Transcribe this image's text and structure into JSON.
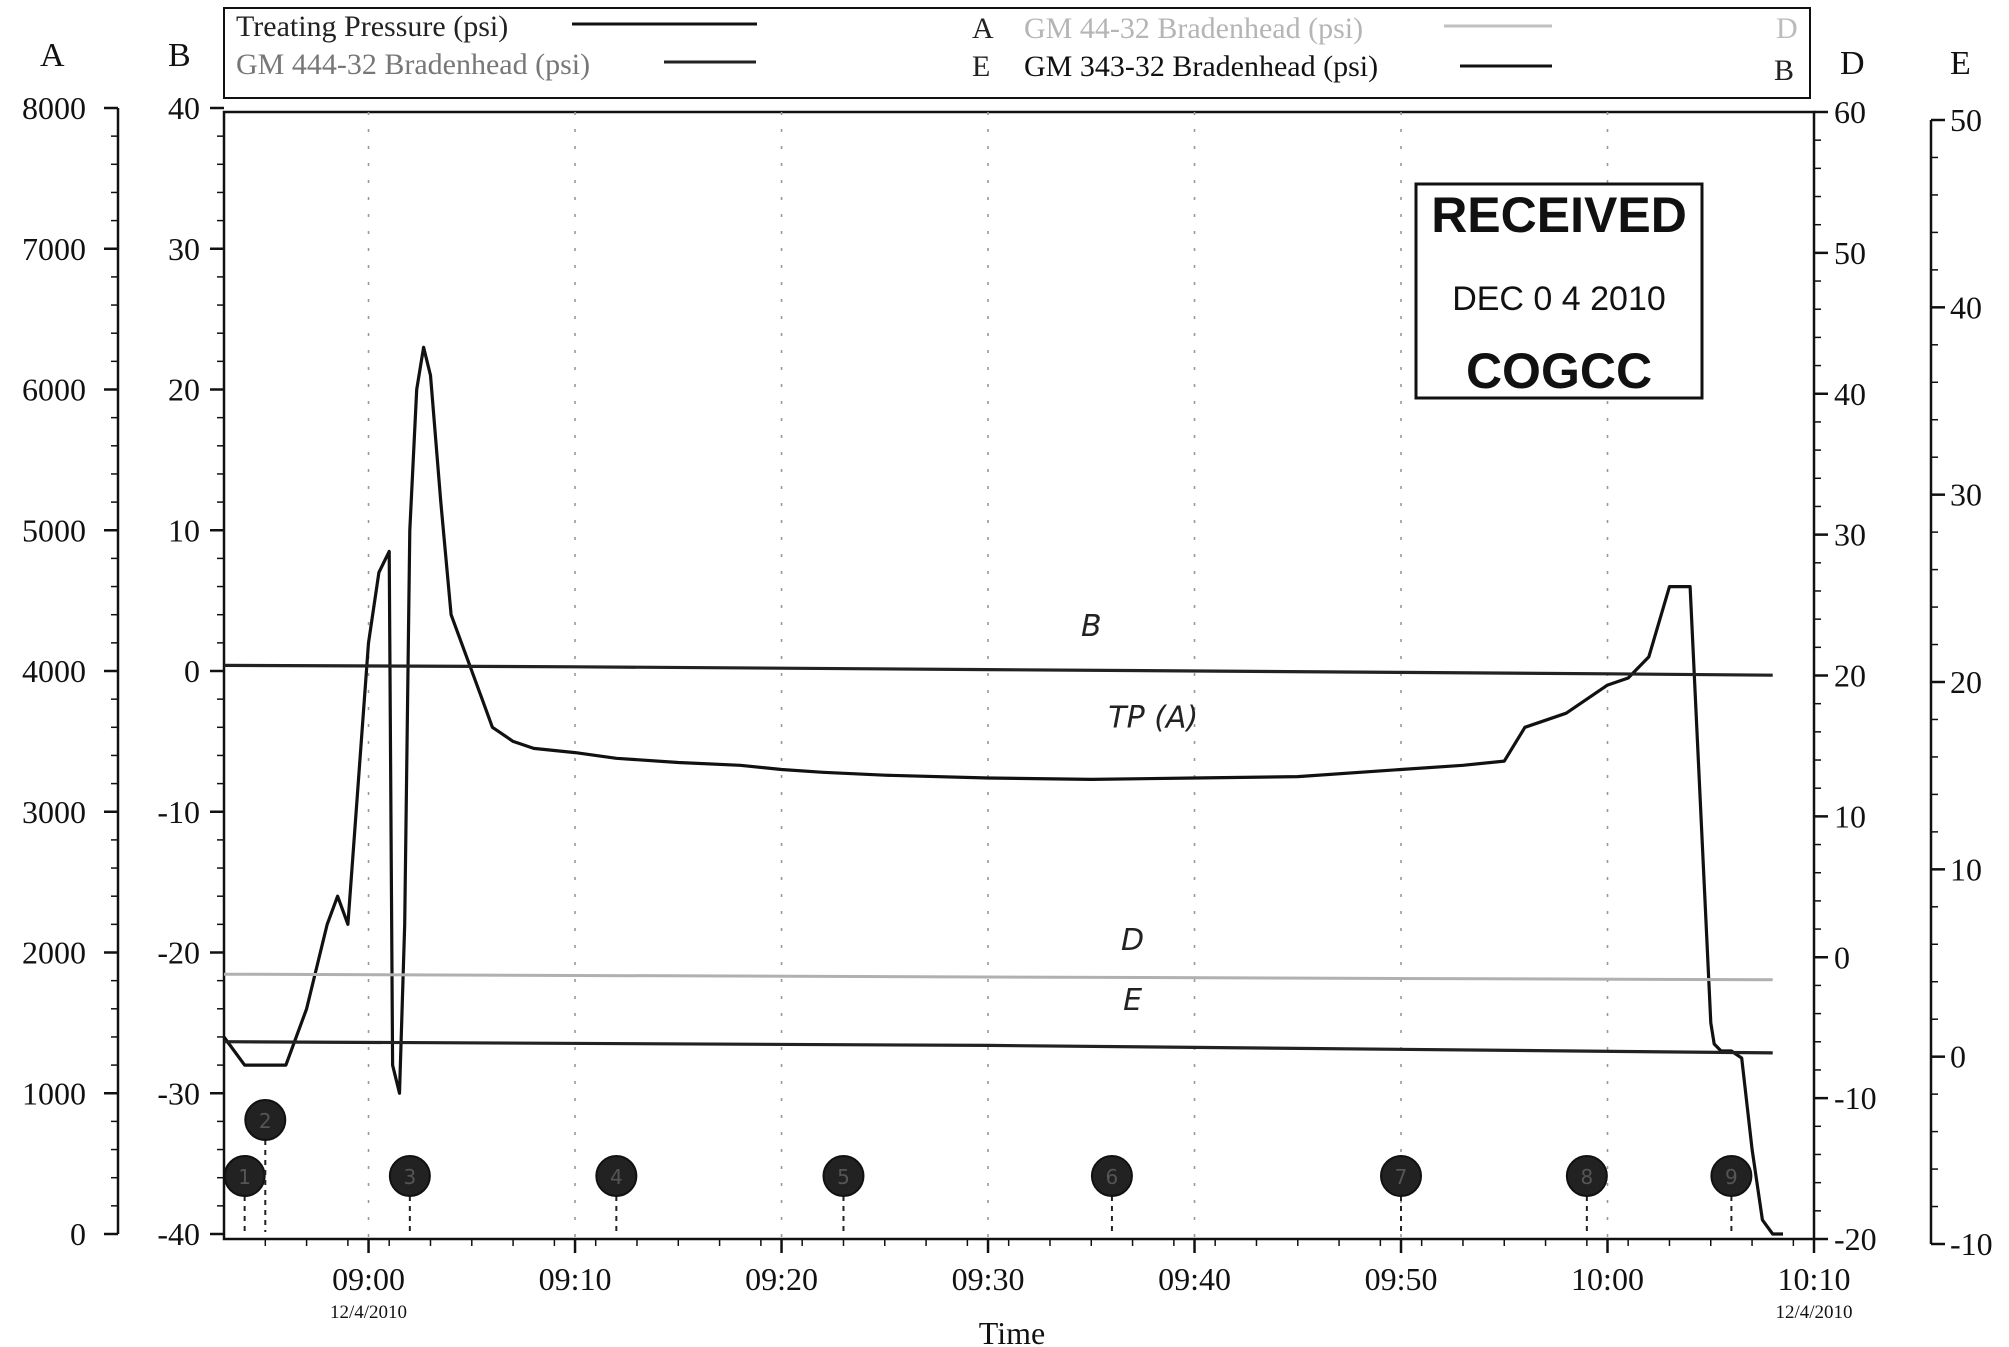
{
  "chart_data": {
    "type": "line",
    "xlabel": "Time",
    "x_ticks": [
      {
        "t": 0,
        "label": "09:00",
        "date": "12/4/2010"
      },
      {
        "t": 10,
        "label": "09:10",
        "date": ""
      },
      {
        "t": 20,
        "label": "09:20",
        "date": ""
      },
      {
        "t": 30,
        "label": "09:30",
        "date": ""
      },
      {
        "t": 40,
        "label": "09:40",
        "date": ""
      },
      {
        "t": 50,
        "label": "09:50",
        "date": ""
      },
      {
        "t": 60,
        "label": "10:00",
        "date": ""
      },
      {
        "t": 70,
        "label": "10:10",
        "date": "12/4/2010"
      }
    ],
    "xlim": [
      "08:53",
      "10:10"
    ],
    "axes": [
      {
        "letter": "A",
        "side": "left",
        "ylim": [
          0,
          8000
        ],
        "ticks": [
          "0",
          "1000",
          "2000",
          "3000",
          "4000",
          "5000",
          "6000",
          "7000",
          "8000"
        ]
      },
      {
        "letter": "B",
        "side": "left",
        "ylim": [
          -40,
          40
        ],
        "ticks": [
          "-40",
          "-30",
          "-20",
          "-10",
          "0",
          "10",
          "20",
          "30",
          "40"
        ]
      },
      {
        "letter": "D",
        "side": "right",
        "ylim": [
          -20,
          60
        ],
        "ticks": [
          "-20",
          "-10",
          "0",
          "10",
          "20",
          "30",
          "40",
          "50",
          "60"
        ]
      },
      {
        "letter": "E",
        "side": "right",
        "ylim": [
          -10,
          50
        ],
        "ticks": [
          "-10",
          "0",
          "10",
          "20",
          "30",
          "40",
          "50"
        ]
      }
    ],
    "legend": [
      {
        "label": "Treating Pressure (psi)",
        "axis": "A",
        "color": "#111111"
      },
      {
        "label": "GM 444-32 Bradenhead (psi)",
        "axis": "B",
        "color": "#333333"
      },
      {
        "label": "GM 44-32 Bradenhead (psi)",
        "axis": "D",
        "color": "#b0b0b0"
      },
      {
        "label": "GM 343-32 Bradenhead (psi)",
        "axis": "E",
        "color": "#111111"
      }
    ],
    "series": [
      {
        "name": "Treating Pressure (psi)",
        "axis": "A",
        "color": "#111111",
        "x": [
          "08:53",
          "08:54",
          "08:55",
          "08:56",
          "08:57",
          "08:58",
          "08:58:30",
          "08:59",
          "08:59:30",
          "09:00",
          "09:00:30",
          "09:01",
          "09:01:10",
          "09:01:30",
          "09:01:45",
          "09:02",
          "09:02:20",
          "09:02:40",
          "09:03",
          "09:03:30",
          "09:04",
          "09:05",
          "09:05:30",
          "09:06",
          "09:07",
          "09:08",
          "09:10",
          "09:12",
          "09:15",
          "09:18",
          "09:20",
          "09:22",
          "09:25",
          "09:30",
          "09:35",
          "09:40",
          "09:45",
          "09:50",
          "09:53",
          "09:55",
          "09:56",
          "09:58",
          "10:00",
          "10:01",
          "10:02",
          "10:03",
          "10:04",
          "10:05",
          "10:05:10",
          "10:05:30",
          "10:06",
          "10:06:30",
          "10:07",
          "10:07:30",
          "10:08",
          "10:08:30"
        ],
        "y": [
          1400,
          1200,
          1200,
          1200,
          1600,
          2200,
          2400,
          2200,
          3200,
          4200,
          4700,
          4850,
          1200,
          1000,
          2200,
          5000,
          6000,
          6300,
          6100,
          5200,
          4400,
          4000,
          3800,
          3600,
          3500,
          3450,
          3420,
          3380,
          3350,
          3330,
          3300,
          3280,
          3260,
          3240,
          3230,
          3240,
          3250,
          3300,
          3330,
          3360,
          3600,
          3700,
          3900,
          3950,
          4100,
          4600,
          4600,
          1500,
          1350,
          1300,
          1300,
          1250,
          600,
          100,
          0,
          0
        ]
      },
      {
        "name": "GM 444-32 Bradenhead (psi)",
        "axis": "B",
        "color": "#222222",
        "x": [
          "08:53",
          "09:10",
          "09:30",
          "09:50",
          "10:00",
          "10:08"
        ],
        "y": [
          0.4,
          0.3,
          0.1,
          -0.1,
          -0.2,
          -0.3
        ]
      },
      {
        "name": "GM 44-32 Bradenhead (psi)",
        "axis": "D",
        "color": "#b0b0b0",
        "x": [
          "08:53",
          "10:08"
        ],
        "y": [
          -1.2,
          -1.6
        ]
      },
      {
        "name": "GM 343-32 Bradenhead (psi)",
        "axis": "E",
        "color": "#222222",
        "x": [
          "08:53",
          "09:30",
          "10:08"
        ],
        "y": [
          0.8,
          0.6,
          0.2
        ]
      }
    ],
    "annotations": [
      {
        "text": "B",
        "x": "09:35",
        "axis": "B",
        "y": 2.5
      },
      {
        "text": "TP (A)",
        "x": "09:38",
        "axis": "A",
        "y": 3600
      },
      {
        "text": "D",
        "x": "09:37",
        "axis": "D",
        "y": 0.5
      },
      {
        "text": "E",
        "x": "09:37",
        "axis": "E",
        "y": 2.5
      }
    ],
    "event_markers": [
      {
        "label": "1",
        "x": "08:54"
      },
      {
        "label": "2",
        "x": "08:55"
      },
      {
        "label": "3",
        "x": "09:02"
      },
      {
        "label": "4",
        "x": "09:12"
      },
      {
        "label": "5",
        "x": "09:23"
      },
      {
        "label": "6",
        "x": "09:36"
      },
      {
        "label": "7",
        "x": "09:50"
      },
      {
        "label": "8",
        "x": "09:59"
      },
      {
        "label": "9",
        "x": "10:06"
      }
    ]
  },
  "stamp": {
    "title": "RECEIVED",
    "date": "DEC 0 4 2010",
    "org": "COGCC"
  }
}
